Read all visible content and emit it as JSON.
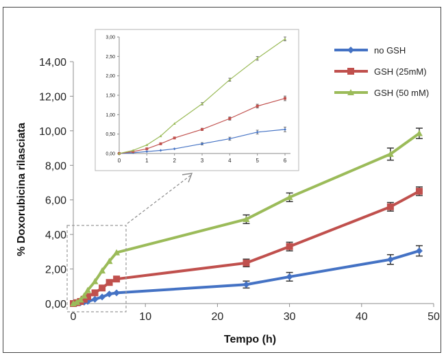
{
  "chart_data": {
    "type": "line",
    "xlabel": "Tempo (h)",
    "ylabel": "% Doxorubicina rilasciata",
    "x": [
      0,
      0.5,
      1,
      1.5,
      2,
      3,
      4,
      5,
      6,
      24,
      30,
      44,
      48
    ],
    "xlim": [
      0,
      50
    ],
    "ylim": [
      0,
      14
    ],
    "x_ticks": [
      "0",
      "10",
      "20",
      "30",
      "40",
      "50"
    ],
    "y_ticks": [
      "0,00",
      "2,00",
      "4,00",
      "6,00",
      "8,00",
      "10,00",
      "12,00",
      "14,00"
    ],
    "legend_position": "top-right",
    "grid": false,
    "series": [
      {
        "name": "no GSH",
        "color": "#4472c4",
        "marker": "diamond",
        "values": [
          0.0,
          0.02,
          0.05,
          0.08,
          0.12,
          0.25,
          0.38,
          0.55,
          0.62,
          1.1,
          1.55,
          2.55,
          3.05
        ],
        "errors": [
          0.02,
          0.02,
          0.02,
          0.02,
          0.02,
          0.03,
          0.04,
          0.05,
          0.06,
          0.2,
          0.25,
          0.28,
          0.3
        ]
      },
      {
        "name": "GSH (25mM)",
        "color": "#c0504d",
        "marker": "square",
        "values": [
          0.0,
          0.05,
          0.12,
          0.25,
          0.4,
          0.62,
          0.9,
          1.22,
          1.42,
          2.35,
          3.3,
          5.6,
          6.5
        ],
        "errors": [
          0.02,
          0.02,
          0.02,
          0.02,
          0.03,
          0.03,
          0.04,
          0.05,
          0.06,
          0.22,
          0.25,
          0.25,
          0.25
        ]
      },
      {
        "name": "GSH (50 mM)",
        "color": "#9bbb59",
        "marker": "triangle",
        "values": [
          0.0,
          0.08,
          0.22,
          0.45,
          0.77,
          1.28,
          1.9,
          2.45,
          2.95,
          4.88,
          6.15,
          8.65,
          9.85
        ],
        "errors": [
          0.02,
          0.02,
          0.02,
          0.02,
          0.03,
          0.03,
          0.04,
          0.05,
          0.05,
          0.25,
          0.25,
          0.35,
          0.3
        ]
      }
    ],
    "inset": {
      "xlim": [
        0,
        6
      ],
      "ylim": [
        0,
        3
      ],
      "x_ticks": [
        "0",
        "1",
        "2",
        "3",
        "4",
        "5",
        "6"
      ],
      "y_ticks": [
        "0,00",
        "0,50",
        "1,00",
        "1,50",
        "2,00",
        "2,50",
        "3,00"
      ],
      "point_count": 9
    }
  }
}
